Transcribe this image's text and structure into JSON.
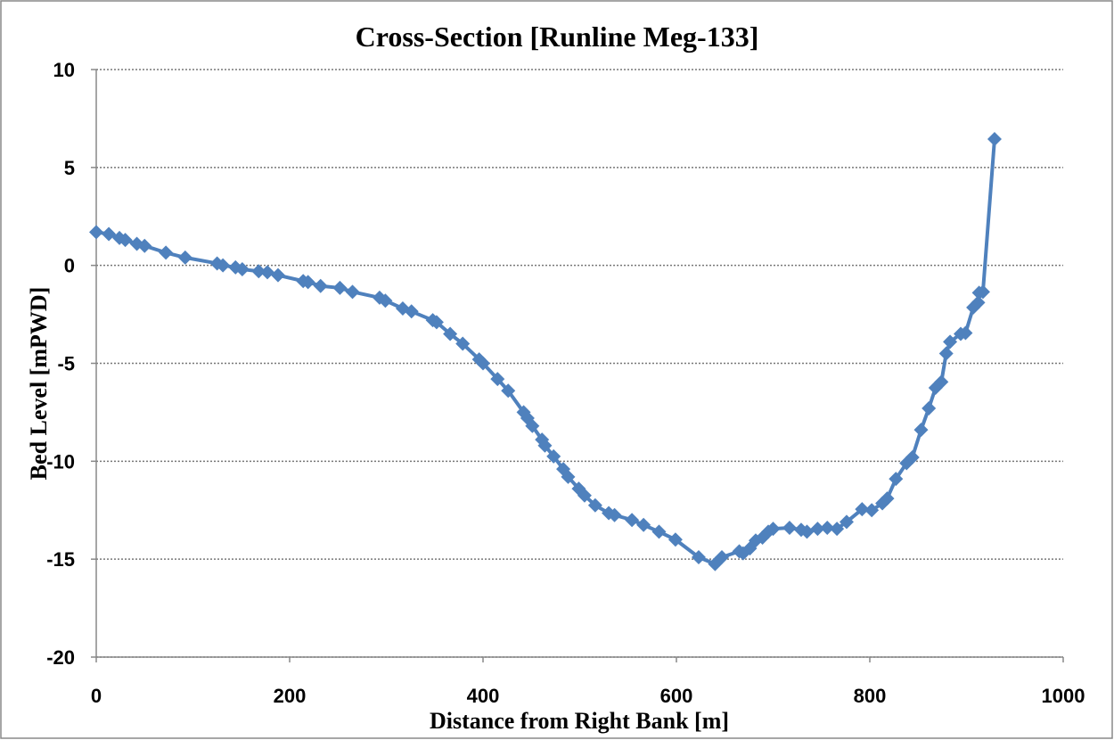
{
  "chart_data": {
    "type": "line",
    "title": "Cross-Section [Runline Meg-133]",
    "x_label": "Distance from Right Bank [m]",
    "y_label": "Bed Level [mPWD]",
    "color": "#4f81bd",
    "grid": true,
    "x": [
      0,
      13,
      24,
      30,
      42,
      50,
      72,
      92,
      125,
      131,
      144,
      151,
      168,
      177,
      188,
      214,
      219,
      232,
      252,
      265,
      293,
      299,
      317,
      326,
      348,
      352,
      366,
      379,
      396,
      400,
      415,
      426,
      442,
      446,
      451,
      461,
      464,
      473,
      483,
      488,
      499,
      505,
      516,
      530,
      536,
      554,
      566,
      582,
      599,
      623,
      640,
      647,
      665,
      669,
      676,
      682,
      689,
      695,
      700,
      717,
      729,
      735,
      746,
      756,
      766,
      776,
      792,
      802,
      813,
      818,
      827,
      838,
      844,
      853,
      861,
      868,
      874,
      879,
      883,
      894,
      899,
      907,
      912,
      913,
      917,
      929
    ],
    "values": [
      1.7,
      1.6,
      1.4,
      1.3,
      1.1,
      1.0,
      0.65,
      0.4,
      0.1,
      0.0,
      -0.1,
      -0.2,
      -0.3,
      -0.35,
      -0.5,
      -0.8,
      -0.85,
      -1.05,
      -1.15,
      -1.35,
      -1.65,
      -1.8,
      -2.2,
      -2.35,
      -2.8,
      -2.9,
      -3.5,
      -4.0,
      -4.8,
      -5.0,
      -5.8,
      -6.4,
      -7.5,
      -7.8,
      -8.2,
      -8.9,
      -9.2,
      -9.75,
      -10.4,
      -10.8,
      -11.4,
      -11.75,
      -12.25,
      -12.65,
      -12.75,
      -13.0,
      -13.25,
      -13.6,
      -14.0,
      -14.9,
      -15.25,
      -14.9,
      -14.6,
      -14.7,
      -14.45,
      -14.05,
      -13.9,
      -13.6,
      -13.45,
      -13.4,
      -13.5,
      -13.6,
      -13.45,
      -13.4,
      -13.45,
      -13.1,
      -12.45,
      -12.5,
      -12.15,
      -11.9,
      -10.9,
      -10.1,
      -9.8,
      -8.4,
      -7.3,
      -6.25,
      -5.95,
      -4.5,
      -3.9,
      -3.5,
      -3.45,
      -2.15,
      -1.9,
      -1.4,
      -1.35,
      6.45
    ],
    "xlim": [
      0,
      1000
    ],
    "xticks": [
      0,
      200,
      400,
      600,
      800,
      1000
    ],
    "ylim": [
      -20,
      10
    ],
    "yticks": [
      -20,
      -15,
      -10,
      -5,
      0,
      5,
      10
    ]
  }
}
